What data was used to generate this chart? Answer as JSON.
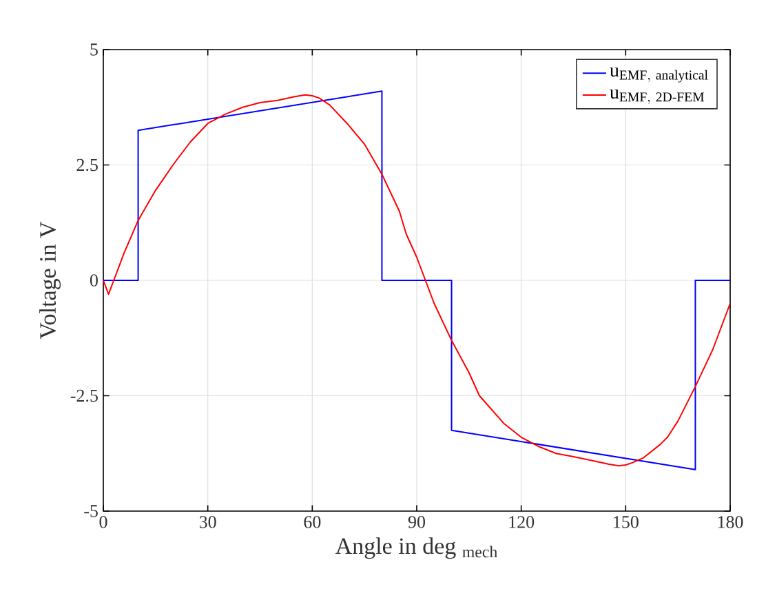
{
  "chart_data": {
    "type": "line",
    "xlabel": "Angle in deg $_{mech}$",
    "ylabel": "Voltage in V",
    "xlim": [
      0,
      180
    ],
    "ylim": [
      -5,
      5
    ],
    "xticks": [
      0,
      30,
      60,
      90,
      120,
      150,
      180
    ],
    "yticks": [
      {
        "value": -5,
        "label": "-5"
      },
      {
        "value": -2.5,
        "label": "-2.5"
      },
      {
        "value": 0,
        "label": "0"
      },
      {
        "value": 2.5,
        "label": "2.5"
      },
      {
        "value": 5,
        "label": "5"
      }
    ],
    "grid": true,
    "legend": "top right",
    "series": [
      {
        "name": "\\mathrm{u}_{\\mathrm{EMF,\\ analytical}}",
        "color": "#0000ff",
        "x": [
          0,
          10,
          10,
          80,
          80,
          100,
          100,
          170,
          170,
          180
        ],
        "values": [
          0,
          0,
          3.25,
          4.1,
          0,
          0,
          -3.25,
          -4.1,
          0,
          0
        ]
      },
      {
        "name": "\\mathrm{u}_{\\mathrm{EMF,\\ 2D\\text{-}FEM}}",
        "color": "#ff0000",
        "x": [
          0,
          1.5,
          3,
          6,
          10,
          15,
          20,
          25,
          30,
          35,
          40,
          45,
          50,
          55,
          58,
          60,
          62,
          65,
          70,
          75,
          80,
          85,
          87,
          90,
          92.5,
          95,
          100,
          105,
          108,
          115,
          120,
          125,
          130,
          135,
          140,
          145,
          148,
          150,
          152,
          155,
          160,
          162,
          165,
          170,
          175,
          180
        ],
        "values": [
          0,
          -0.3,
          0,
          0.6,
          1.3,
          1.95,
          2.5,
          3.0,
          3.4,
          3.6,
          3.75,
          3.85,
          3.9,
          3.98,
          4.02,
          4.0,
          3.95,
          3.8,
          3.4,
          2.95,
          2.3,
          1.5,
          1.0,
          0.5,
          0,
          -0.5,
          -1.3,
          -2.0,
          -2.5,
          -3.1,
          -3.4,
          -3.6,
          -3.75,
          -3.82,
          -3.9,
          -3.98,
          -4.02,
          -4.0,
          -3.95,
          -3.85,
          -3.55,
          -3.4,
          -3.05,
          -2.3,
          -1.5,
          -0.5
        ]
      }
    ]
  }
}
